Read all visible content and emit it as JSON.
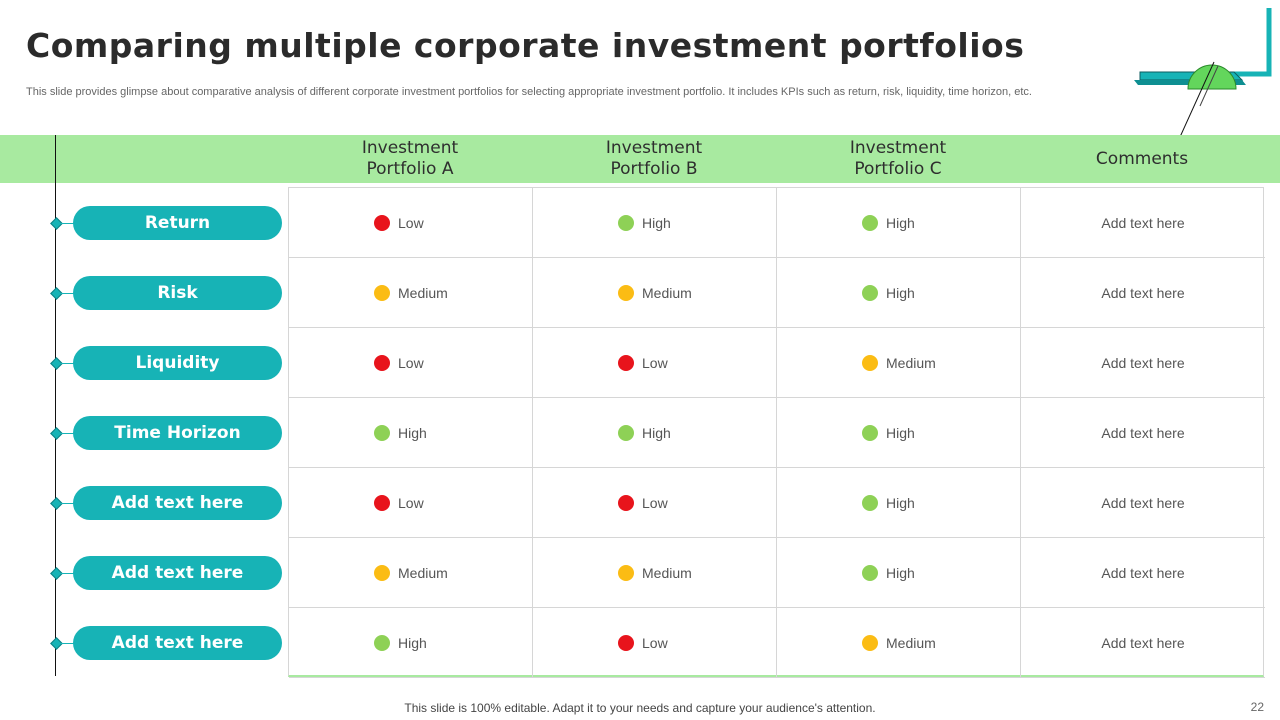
{
  "title": "Comparing multiple corporate investment portfolios",
  "subtitle": "This slide provides glimpse about comparative analysis of different corporate investment portfolios for selecting appropriate investment portfolio. It includes KPIs such as return, risk, liquidity, time horizon, etc.",
  "columns": [
    "Investment Portfolio A",
    "Investment Portfolio B",
    "Investment Portfolio C",
    "Comments"
  ],
  "rating_colors": {
    "Low": "#e8141c",
    "Medium": "#fbbc14",
    "High": "#8ed156"
  },
  "accent_color": "#17b3b6",
  "header_band_color": "#a8eaa0",
  "rows": [
    {
      "label": "Return",
      "ratings": [
        "Low",
        "High",
        "High"
      ],
      "comment": "Add text here"
    },
    {
      "label": "Risk",
      "ratings": [
        "Medium",
        "Medium",
        "High"
      ],
      "comment": "Add text here"
    },
    {
      "label": "Liquidity",
      "ratings": [
        "Low",
        "Low",
        "Medium"
      ],
      "comment": "Add text here"
    },
    {
      "label": "Time Horizon",
      "ratings": [
        "High",
        "High",
        "High"
      ],
      "comment": "Add text here"
    },
    {
      "label": "Add text here",
      "ratings": [
        "Low",
        "Low",
        "High"
      ],
      "comment": "Add text here"
    },
    {
      "label": "Add text here",
      "ratings": [
        "Medium",
        "Medium",
        "High"
      ],
      "comment": "Add text here"
    },
    {
      "label": "Add text here",
      "ratings": [
        "High",
        "Low",
        "Medium"
      ],
      "comment": "Add text here"
    }
  ],
  "footer": "This slide is 100% editable. Adapt it to your needs and capture your audience's attention.",
  "page_number": "22"
}
